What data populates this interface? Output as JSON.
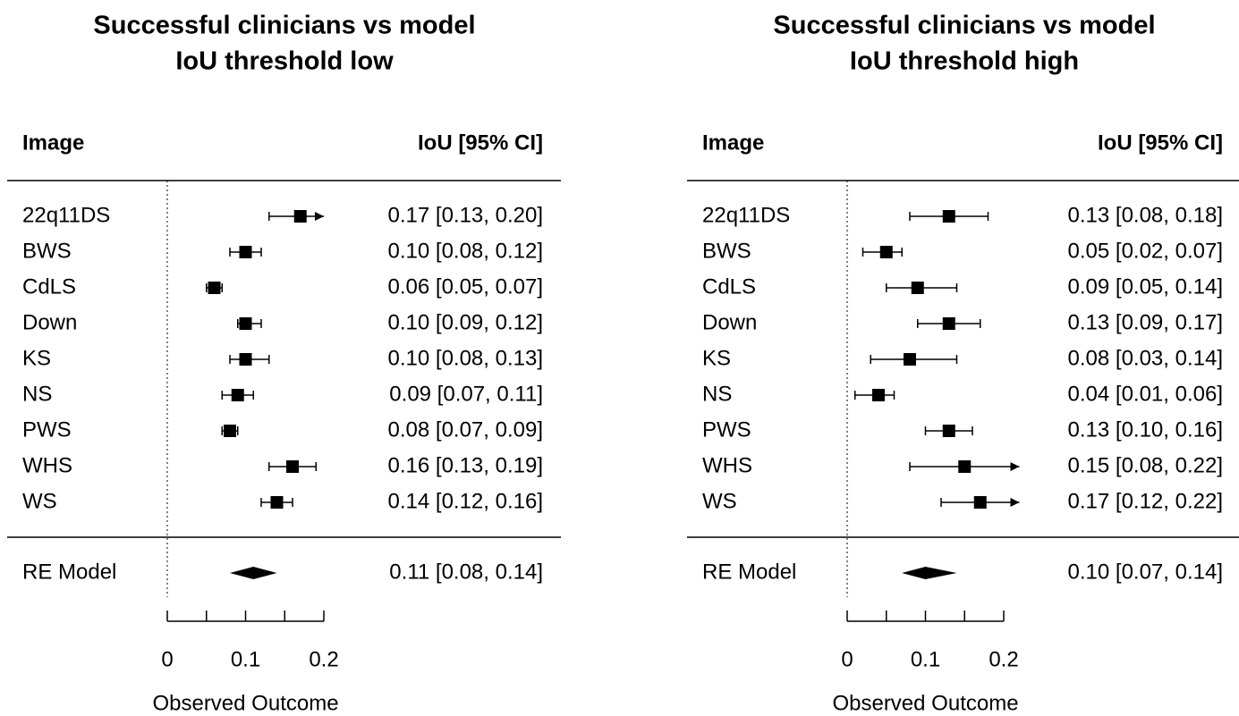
{
  "chart_data": [
    {
      "type": "forest",
      "title": [
        "Successful clinicians vs model",
        "IoU threshold low"
      ],
      "column_headers": [
        "Image",
        "IoU [95% CI]"
      ],
      "categories": [
        "22q11DS",
        "BWS",
        "CdLS",
        "Down",
        "KS",
        "NS",
        "PWS",
        "WHS",
        "WS"
      ],
      "values": [
        0.17,
        0.1,
        0.06,
        0.1,
        0.1,
        0.09,
        0.08,
        0.16,
        0.14
      ],
      "ci_lower": [
        0.13,
        0.08,
        0.05,
        0.09,
        0.08,
        0.07,
        0.07,
        0.13,
        0.12
      ],
      "ci_upper": [
        0.2,
        0.12,
        0.07,
        0.12,
        0.13,
        0.11,
        0.09,
        0.19,
        0.16
      ],
      "value_labels": [
        "0.17 [0.13, 0.20]",
        "0.10 [0.08, 0.12]",
        "0.06 [0.05, 0.07]",
        "0.10 [0.09, 0.12]",
        "0.10 [0.08, 0.13]",
        "0.09 [0.07, 0.11]",
        "0.08 [0.07, 0.09]",
        "0.16 [0.13, 0.19]",
        "0.14 [0.12, 0.16]"
      ],
      "summary": {
        "label": "RE Model",
        "value": 0.11,
        "ci_lower": 0.08,
        "ci_upper": 0.14,
        "value_label": "0.11 [0.08, 0.14]"
      },
      "xlim": [
        0,
        0.2
      ],
      "xticks": [
        0,
        0.1,
        0.2
      ],
      "minor_xticks": [
        0.05,
        0.15
      ],
      "xlabel": "Observed Outcome",
      "reference_line": 0,
      "color": "#000000"
    },
    {
      "type": "forest",
      "title": [
        "Successful clinicians vs model",
        "IoU threshold high"
      ],
      "column_headers": [
        "Image",
        "IoU [95% CI]"
      ],
      "categories": [
        "22q11DS",
        "BWS",
        "CdLS",
        "Down",
        "KS",
        "NS",
        "PWS",
        "WHS",
        "WS"
      ],
      "values": [
        0.13,
        0.05,
        0.09,
        0.13,
        0.08,
        0.04,
        0.13,
        0.15,
        0.17
      ],
      "ci_lower": [
        0.08,
        0.02,
        0.05,
        0.09,
        0.03,
        0.01,
        0.1,
        0.08,
        0.12
      ],
      "ci_upper": [
        0.18,
        0.07,
        0.14,
        0.17,
        0.14,
        0.06,
        0.16,
        0.22,
        0.22
      ],
      "value_labels": [
        "0.13 [0.08, 0.18]",
        "0.05 [0.02, 0.07]",
        "0.09 [0.05, 0.14]",
        "0.13 [0.09, 0.17]",
        "0.08 [0.03, 0.14]",
        "0.04 [0.01, 0.06]",
        "0.13 [0.10, 0.16]",
        "0.15 [0.08, 0.22]",
        "0.17 [0.12, 0.22]"
      ],
      "summary": {
        "label": "RE Model",
        "value": 0.1,
        "ci_lower": 0.07,
        "ci_upper": 0.14,
        "value_label": "0.10 [0.07, 0.14]"
      },
      "xlim": [
        0,
        0.2
      ],
      "xticks": [
        0,
        0.1,
        0.2
      ],
      "minor_xticks": [
        0.05,
        0.15
      ],
      "xlabel": "Observed Outcome",
      "reference_line": 0,
      "color": "#000000"
    }
  ]
}
